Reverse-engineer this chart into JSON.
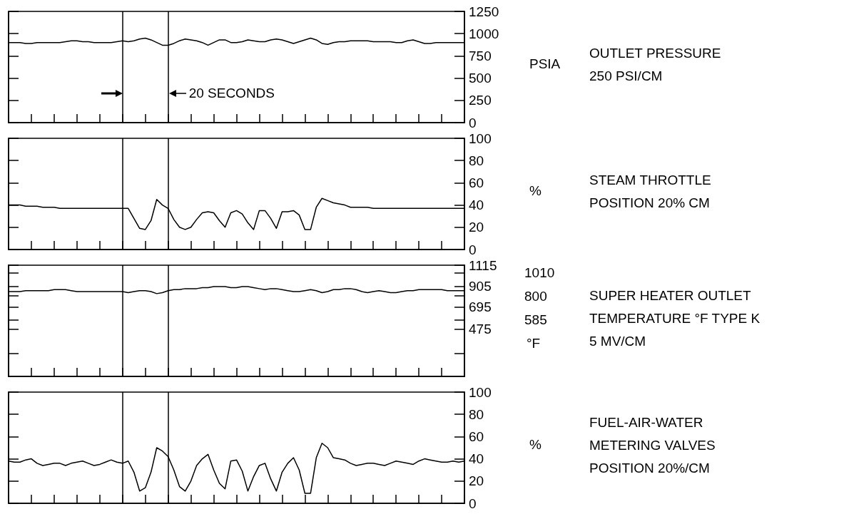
{
  "chart_data": [
    {
      "type": "line",
      "ylabel": "PSIA",
      "tick_labels": "y",
      "annotations": [
        "20 SECONDS",
        "OUTLET PRESSURE\n250 PSI/CM"
      ],
      "categories": [
        null,
        null,
        null,
        null,
        null,
        null,
        null,
        null,
        null,
        null,
        null,
        null,
        null,
        null,
        null,
        null,
        null,
        null,
        null,
        null,
        null,
        null,
        null,
        null,
        null,
        null,
        null,
        null,
        null,
        null,
        null,
        null,
        null,
        null,
        null,
        null,
        null,
        null,
        null,
        null,
        null,
        null,
        null,
        null,
        null,
        null,
        null,
        null,
        null,
        null,
        null,
        null,
        null,
        null,
        null,
        null,
        null,
        null,
        null,
        null,
        null,
        null,
        null,
        null,
        null,
        null,
        null,
        null,
        null,
        null,
        null,
        null,
        null,
        null,
        null,
        null,
        null,
        null,
        null,
        null,
        null
      ],
      "ylim": [
        0,
        1250
      ],
      "yticks": [
        0,
        250,
        500,
        750,
        1000,
        1250
      ],
      "series": [
        {
          "color": "#000000",
          "values": [
            900,
            900,
            900,
            890,
            890,
            900,
            900,
            900,
            900,
            900,
            910,
            920,
            920,
            910,
            910,
            900,
            900,
            900,
            900,
            910,
            920,
            910,
            920,
            940,
            950,
            930,
            900,
            870,
            870,
            890,
            920,
            940,
            930,
            920,
            900,
            870,
            900,
            930,
            930,
            900,
            900,
            910,
            930,
            920,
            910,
            910,
            930,
            940,
            930,
            910,
            890,
            910,
            930,
            950,
            930,
            890,
            880,
            900,
            910,
            910,
            920,
            920,
            920,
            920,
            910,
            910,
            910,
            910,
            900,
            900,
            920,
            930,
            910,
            890,
            890,
            900,
            900,
            900,
            900,
            900,
            900
          ]
        }
      ]
    },
    {
      "type": "line",
      "ylabel": "%",
      "tick_labels": "y",
      "annotations": [
        "STEAM THROTTLE\nPOSITION 20% CM"
      ],
      "categories": [
        null,
        null,
        null,
        null,
        null,
        null,
        null,
        null,
        null,
        null,
        null,
        null,
        null,
        null,
        null,
        null,
        null,
        null,
        null,
        null,
        null,
        null,
        null,
        null,
        null,
        null,
        null,
        null,
        null,
        null,
        null,
        null,
        null,
        null,
        null,
        null,
        null,
        null,
        null,
        null,
        null,
        null,
        null,
        null,
        null,
        null,
        null,
        null,
        null,
        null,
        null,
        null,
        null,
        null,
        null,
        null,
        null,
        null,
        null,
        null,
        null,
        null,
        null,
        null,
        null,
        null,
        null,
        null,
        null,
        null,
        null,
        null,
        null,
        null,
        null,
        null,
        null,
        null,
        null,
        null,
        null
      ],
      "ylim": [
        0,
        100
      ],
      "yticks": [
        0,
        20,
        40,
        60,
        80,
        100
      ],
      "series": [
        {
          "color": "#000000",
          "values": [
            40,
            40,
            40,
            39,
            39,
            39,
            38,
            38,
            38,
            37,
            37,
            37,
            37,
            37,
            37,
            37,
            37,
            37,
            37,
            37,
            37,
            37,
            28,
            19,
            18,
            26,
            45,
            40,
            37,
            27,
            20,
            18,
            20,
            27,
            33,
            34,
            33,
            26,
            20,
            33,
            35,
            32,
            24,
            18,
            35,
            35,
            28,
            19,
            34,
            34,
            35,
            31,
            18,
            18,
            38,
            46,
            44,
            42,
            41,
            40,
            38,
            38,
            38,
            38,
            37,
            37,
            37,
            37,
            37,
            37,
            37,
            37,
            37,
            37,
            37,
            37,
            37,
            37,
            37,
            37,
            37
          ]
        }
      ]
    },
    {
      "type": "line",
      "y2label": "°F",
      "tick_labels": "y",
      "annotations": [
        "SUPER HEATER OUTLET\nTEMPERATURE °F TYPE K\n5 MV/CM"
      ],
      "categories": [
        null,
        null,
        null,
        null,
        null,
        null,
        null,
        null,
        null,
        null,
        null,
        null,
        null,
        null,
        null,
        null,
        null,
        null,
        null,
        null,
        null,
        null,
        null,
        null,
        null,
        null,
        null,
        null,
        null,
        null,
        null,
        null,
        null,
        null,
        null,
        null,
        null,
        null,
        null,
        null,
        null,
        null,
        null,
        null,
        null,
        null,
        null,
        null,
        null,
        null,
        null,
        null,
        null,
        null,
        null,
        null,
        null,
        null,
        null,
        null,
        null,
        null,
        null,
        null,
        null,
        null,
        null,
        null,
        null,
        null,
        null,
        null,
        null,
        null,
        null,
        null,
        null,
        null,
        null,
        null,
        null
      ],
      "ylim": [
        0,
        1115
      ],
      "yticks": [
        {
          "value": 230,
          "label": null
        },
        475,
        695,
        905,
        1115
      ],
      "y2lim": [
        70,
        1080
      ],
      "y2ticks": [
        585,
        800,
        1010
      ],
      "series": [
        {
          "color": "#000000",
          "values": [
            850,
            850,
            850,
            860,
            860,
            860,
            860,
            860,
            870,
            870,
            870,
            860,
            850,
            850,
            850,
            850,
            850,
            850,
            850,
            850,
            850,
            840,
            850,
            860,
            860,
            850,
            830,
            840,
            860,
            870,
            870,
            880,
            880,
            880,
            890,
            890,
            900,
            900,
            900,
            890,
            890,
            900,
            900,
            890,
            880,
            870,
            880,
            880,
            870,
            860,
            850,
            850,
            860,
            870,
            860,
            840,
            850,
            870,
            870,
            880,
            880,
            870,
            850,
            840,
            850,
            860,
            850,
            840,
            840,
            850,
            860,
            860,
            870,
            870,
            870,
            870,
            870,
            860,
            860,
            860,
            860
          ]
        }
      ]
    },
    {
      "type": "line",
      "ylabel": "%",
      "tick_labels": "y",
      "annotations": [
        "FUEL-AIR-WATER\nMETERING VALVES\nPOSITION 20%/CM"
      ],
      "categories": [
        null,
        null,
        null,
        null,
        null,
        null,
        null,
        null,
        null,
        null,
        null,
        null,
        null,
        null,
        null,
        null,
        null,
        null,
        null,
        null,
        null,
        null,
        null,
        null,
        null,
        null,
        null,
        null,
        null,
        null,
        null,
        null,
        null,
        null,
        null,
        null,
        null,
        null,
        null,
        null,
        null,
        null,
        null,
        null,
        null,
        null,
        null,
        null,
        null,
        null,
        null,
        null,
        null,
        null,
        null,
        null,
        null,
        null,
        null,
        null,
        null,
        null,
        null,
        null,
        null,
        null,
        null,
        null,
        null,
        null,
        null,
        null,
        null,
        null,
        null,
        null,
        null,
        null,
        null,
        null,
        null
      ],
      "ylim": [
        0,
        100
      ],
      "yticks": [
        0,
        20,
        40,
        60,
        80,
        100
      ],
      "series": [
        {
          "color": "#000000",
          "values": [
            38,
            37,
            37,
            39,
            40,
            36,
            34,
            35,
            36,
            36,
            34,
            36,
            37,
            38,
            36,
            34,
            35,
            37,
            39,
            37,
            36,
            38,
            28,
            11,
            14,
            28,
            50,
            47,
            42,
            30,
            15,
            11,
            20,
            34,
            40,
            44,
            30,
            18,
            13,
            38,
            39,
            29,
            11,
            24,
            34,
            36,
            22,
            11,
            28,
            36,
            41,
            30,
            9,
            9,
            41,
            54,
            50,
            41,
            40,
            39,
            36,
            34,
            35,
            36,
            36,
            35,
            34,
            36,
            38,
            37,
            36,
            35,
            38,
            40,
            39,
            38,
            37,
            37,
            38,
            37,
            38
          ]
        }
      ]
    }
  ]
}
